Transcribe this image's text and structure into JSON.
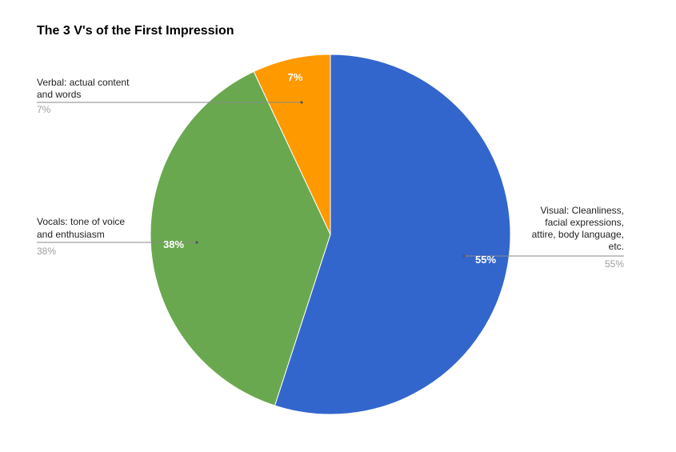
{
  "chart_data": {
    "type": "pie",
    "title": "The 3 V's of the First Impression",
    "slices": [
      {
        "label_lines": [
          "Visual: Cleanliness,",
          "facial expressions,",
          "attire, body language,",
          "etc."
        ],
        "value": 55,
        "percent_text": "55%",
        "color": "#3366cc"
      },
      {
        "label_lines": [
          "Vocals: tone of voice",
          "and enthusiasm"
        ],
        "value": 38,
        "percent_text": "38%",
        "color": "#6aa84f"
      },
      {
        "label_lines": [
          "Verbal: actual content",
          "and words"
        ],
        "value": 7,
        "percent_text": "7%",
        "color": "#ff9900"
      }
    ],
    "legend": "labeled slices"
  }
}
